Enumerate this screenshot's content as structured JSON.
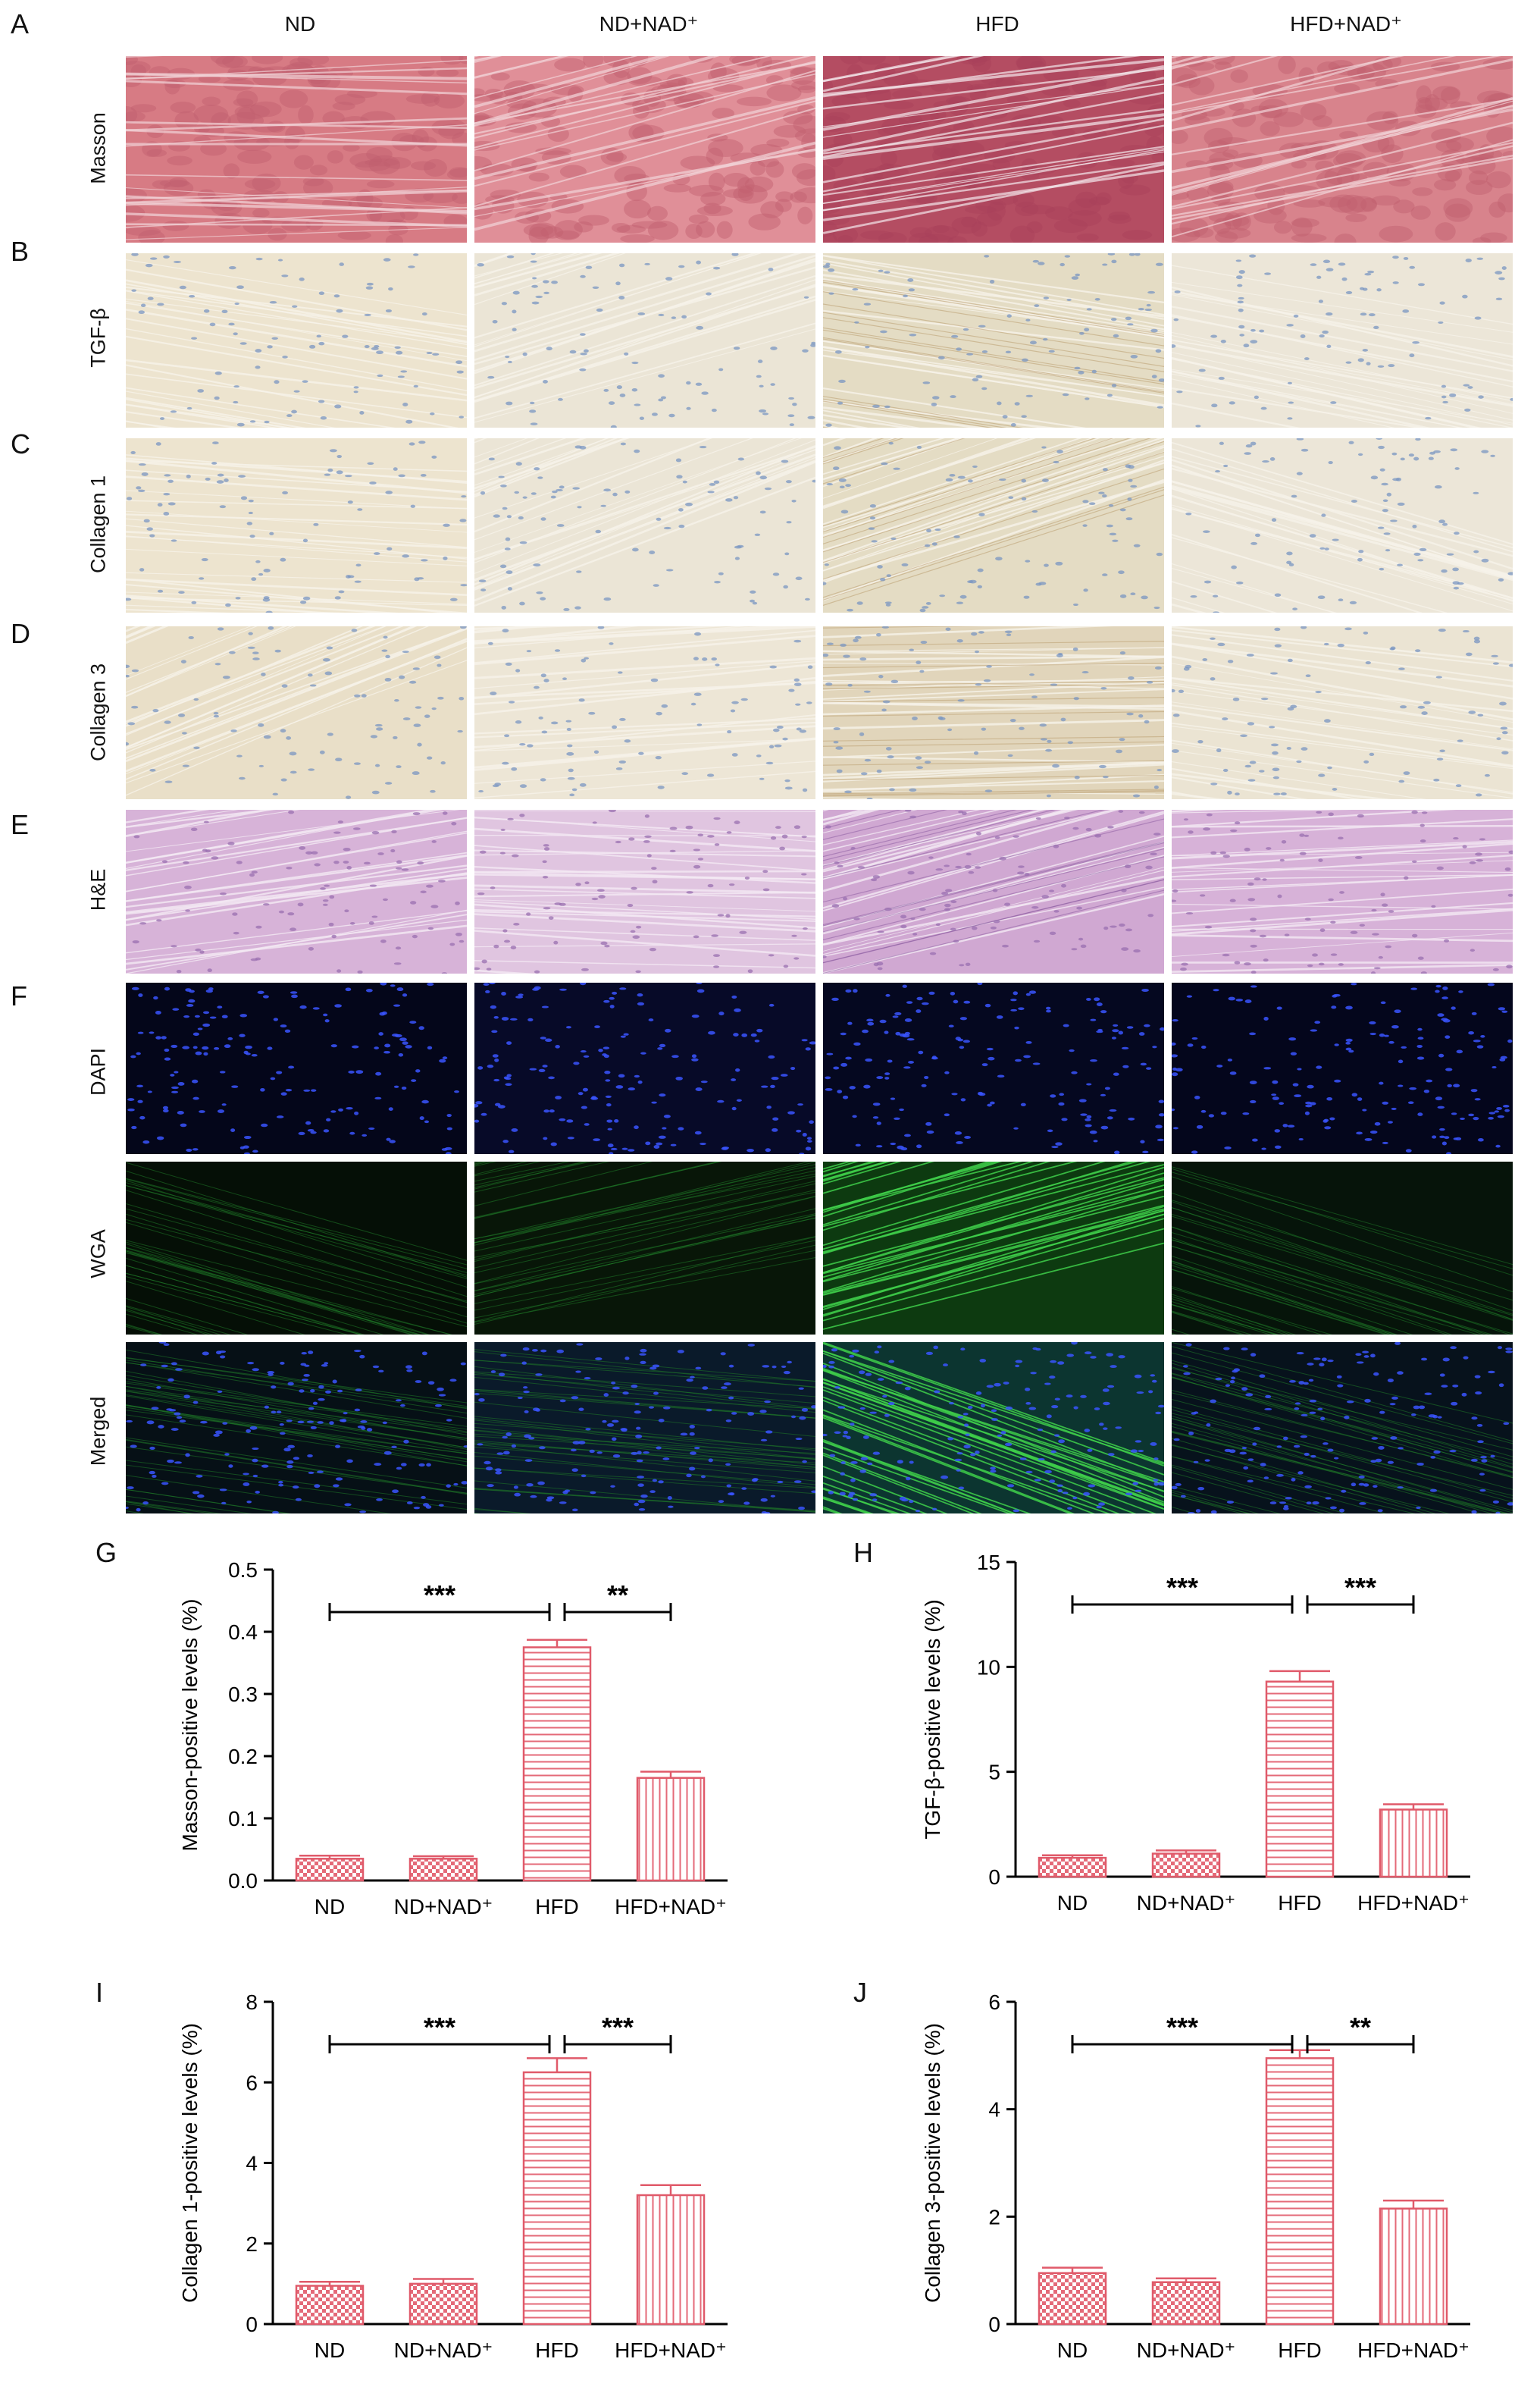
{
  "figure": {
    "column_headers": [
      "ND",
      "ND+NAD⁺",
      "HFD",
      "HFD+NAD⁺"
    ],
    "panels": [
      {
        "letter": "A",
        "stain": "Masson",
        "kind": "masson"
      },
      {
        "letter": "B",
        "stain": "TGF-β",
        "kind": "ihc"
      },
      {
        "letter": "C",
        "stain": "Collagen 1",
        "kind": "ihc"
      },
      {
        "letter": "D",
        "stain": "Collagen 3",
        "kind": "ihc3"
      },
      {
        "letter": "E",
        "stain": "H&E",
        "kind": "he"
      }
    ],
    "fluorescence": {
      "letter": "F",
      "rows": [
        {
          "stain": "DAPI",
          "kind": "dapi"
        },
        {
          "stain": "WGA",
          "kind": "wga"
        },
        {
          "stain": "Merged",
          "kind": "merged"
        }
      ]
    },
    "colors": {
      "masson": "#c9707a",
      "ihc": "#ede6d4",
      "he": "#d9b8d9",
      "dapi": "#2233cc",
      "wga": "#2fa83a",
      "bar_stroke": "#e05a6a"
    }
  },
  "chart_data": [
    {
      "letter": "G",
      "type": "bar",
      "categories": [
        "ND",
        "ND+NAD⁺",
        "HFD",
        "HFD+NAD⁺"
      ],
      "values": [
        0.035,
        0.035,
        0.375,
        0.165
      ],
      "errors": [
        0.005,
        0.004,
        0.012,
        0.01
      ],
      "ylabel": "Masson-positive levels (%)",
      "ylim": [
        0,
        0.5
      ],
      "yticks": [
        "0.0",
        "0.1",
        "0.2",
        "0.3",
        "0.4",
        "0.5"
      ],
      "yticks_v": [
        0,
        0.1,
        0.2,
        0.3,
        0.4,
        0.5
      ],
      "significance": [
        {
          "from": 0,
          "to": 2,
          "label": "***"
        },
        {
          "from": 2,
          "to": 3,
          "label": "**"
        }
      ]
    },
    {
      "letter": "H",
      "type": "bar",
      "categories": [
        "ND",
        "ND+NAD⁺",
        "HFD",
        "HFD+NAD⁺"
      ],
      "values": [
        0.9,
        1.1,
        9.3,
        3.2
      ],
      "errors": [
        0.12,
        0.15,
        0.5,
        0.25
      ],
      "ylabel": "TGF-β-positive levels (%)",
      "ylim": [
        0,
        15
      ],
      "yticks": [
        "0",
        "5",
        "10",
        "15"
      ],
      "yticks_v": [
        0,
        5,
        10,
        15
      ],
      "significance": [
        {
          "from": 0,
          "to": 2,
          "label": "***"
        },
        {
          "from": 2,
          "to": 3,
          "label": "***"
        }
      ]
    },
    {
      "letter": "I",
      "type": "bar",
      "categories": [
        "ND",
        "ND+NAD⁺",
        "HFD",
        "HFD+NAD⁺"
      ],
      "values": [
        0.95,
        1.0,
        6.25,
        3.2
      ],
      "errors": [
        0.1,
        0.12,
        0.35,
        0.25
      ],
      "ylabel": "Collagen 1-positive levels (%)",
      "ylim": [
        0,
        8
      ],
      "yticks": [
        "0",
        "2",
        "4",
        "6",
        "8"
      ],
      "yticks_v": [
        0,
        2,
        4,
        6,
        8
      ],
      "significance": [
        {
          "from": 0,
          "to": 2,
          "label": "***"
        },
        {
          "from": 2,
          "to": 3,
          "label": "***"
        }
      ]
    },
    {
      "letter": "J",
      "type": "bar",
      "categories": [
        "ND",
        "ND+NAD⁺",
        "HFD",
        "HFD+NAD⁺"
      ],
      "values": [
        0.95,
        0.78,
        4.95,
        2.15
      ],
      "errors": [
        0.1,
        0.07,
        0.15,
        0.15
      ],
      "ylabel": "Collagen 3-positive levels (%)",
      "ylim": [
        0,
        6
      ],
      "yticks": [
        "0",
        "2",
        "4",
        "6"
      ],
      "yticks_v": [
        0,
        2,
        4,
        6
      ],
      "significance": [
        {
          "from": 0,
          "to": 2,
          "label": "***"
        },
        {
          "from": 2,
          "to": 3,
          "label": "**"
        }
      ]
    }
  ]
}
